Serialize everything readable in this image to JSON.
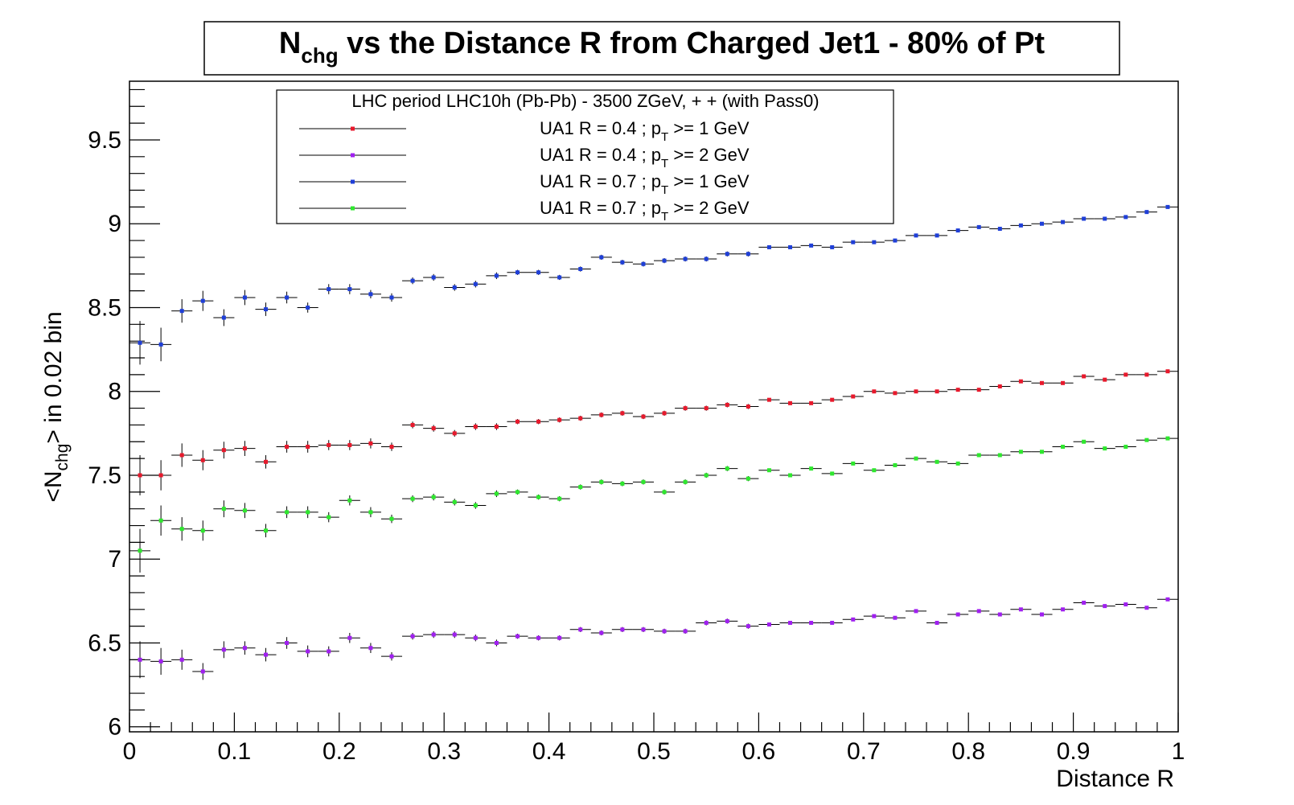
{
  "chart_data": {
    "type": "scatter",
    "title": {
      "main": "N",
      "sub": "chg",
      "rest": " vs the Distance R from Charged Jet1 - 80% of Pt"
    },
    "xlabel": "Distance R",
    "ylabel": {
      "pre": "<N",
      "sub": "chg",
      "post": "> in 0.02 bin"
    },
    "xlim": [
      0,
      1
    ],
    "ylim": [
      5.97,
      9.85
    ],
    "x_ticks": [
      {
        "value": 0,
        "label": "0"
      },
      {
        "value": 0.1,
        "label": "0.1"
      },
      {
        "value": 0.2,
        "label": "0.2"
      },
      {
        "value": 0.3,
        "label": "0.3"
      },
      {
        "value": 0.4,
        "label": "0.4"
      },
      {
        "value": 0.5,
        "label": "0.5"
      },
      {
        "value": 0.6,
        "label": "0.6"
      },
      {
        "value": 0.7,
        "label": "0.7"
      },
      {
        "value": 0.8,
        "label": "0.8"
      },
      {
        "value": 0.9,
        "label": "0.9"
      },
      {
        "value": 1,
        "label": "1"
      }
    ],
    "y_ticks": [
      {
        "value": 6,
        "label": "6"
      },
      {
        "value": 6.5,
        "label": "6.5"
      },
      {
        "value": 7,
        "label": "7"
      },
      {
        "value": 7.5,
        "label": "7.5"
      },
      {
        "value": 8,
        "label": "8"
      },
      {
        "value": 8.5,
        "label": "8.5"
      },
      {
        "value": 9,
        "label": "9"
      },
      {
        "value": 9.5,
        "label": "9.5"
      }
    ],
    "grid": false,
    "legend": {
      "placement": "top-center",
      "header": "LHC period LHC10h (Pb-Pb) - 3500 ZGeV, + + (with Pass0)"
    },
    "bin_width": 0.02,
    "x": [
      0.01,
      0.03,
      0.05,
      0.07,
      0.09,
      0.11,
      0.13,
      0.15,
      0.17,
      0.19,
      0.21,
      0.23,
      0.25,
      0.27,
      0.29,
      0.31,
      0.33,
      0.35,
      0.37,
      0.39,
      0.41,
      0.43,
      0.45,
      0.47,
      0.49,
      0.51,
      0.53,
      0.55,
      0.57,
      0.59,
      0.61,
      0.63,
      0.65,
      0.67,
      0.69,
      0.71,
      0.73,
      0.75,
      0.77,
      0.79,
      0.81,
      0.83,
      0.85,
      0.87,
      0.89,
      0.91,
      0.93,
      0.95,
      0.97,
      0.99
    ],
    "series": [
      {
        "name": "UA1 R = 0.4 ; p_T >= 1 GeV",
        "legend_pre": "UA1 R = 0.4 ; p",
        "legend_sub": "T",
        "legend_post": " >= 1 GeV",
        "color": "#e8192c",
        "values": [
          7.5,
          7.5,
          7.62,
          7.59,
          7.65,
          7.66,
          7.58,
          7.67,
          7.67,
          7.68,
          7.68,
          7.69,
          7.67,
          7.8,
          7.78,
          7.75,
          7.79,
          7.79,
          7.82,
          7.82,
          7.83,
          7.84,
          7.86,
          7.87,
          7.85,
          7.87,
          7.9,
          7.9,
          7.92,
          7.91,
          7.95,
          7.93,
          7.93,
          7.95,
          7.97,
          8.0,
          7.99,
          8.0,
          8.0,
          8.01,
          8.01,
          8.03,
          8.06,
          8.05,
          8.05,
          8.09,
          8.07,
          8.1,
          8.1,
          8.12
        ],
        "errors": [
          0.12,
          0.09,
          0.07,
          0.06,
          0.05,
          0.045,
          0.04,
          0.035,
          0.035,
          0.03,
          0.03,
          0.03,
          0.025,
          0.02,
          0.02,
          0.02,
          0.02,
          0.02,
          0.015,
          0.015,
          0.015,
          0.015,
          0.015,
          0.015,
          0.015,
          0.015,
          0.015,
          0.015,
          0.015,
          0.015,
          0.01,
          0.01,
          0.01,
          0.01,
          0.01,
          0.01,
          0.01,
          0.01,
          0.01,
          0.01,
          0.01,
          0.01,
          0.01,
          0.01,
          0.01,
          0.01,
          0.01,
          0.01,
          0.01,
          0.01
        ]
      },
      {
        "name": "UA1 R = 0.4 ; p_T >= 2 GeV",
        "legend_pre": "UA1 R = 0.4 ; p",
        "legend_sub": "T",
        "legend_post": " >= 2 GeV",
        "color": "#a020f0",
        "values": [
          6.4,
          6.39,
          6.4,
          6.33,
          6.46,
          6.47,
          6.43,
          6.5,
          6.45,
          6.45,
          6.53,
          6.47,
          6.42,
          6.54,
          6.55,
          6.55,
          6.53,
          6.5,
          6.54,
          6.53,
          6.53,
          6.58,
          6.56,
          6.58,
          6.58,
          6.57,
          6.57,
          6.62,
          6.63,
          6.6,
          6.61,
          6.62,
          6.62,
          6.62,
          6.64,
          6.66,
          6.65,
          6.69,
          6.62,
          6.67,
          6.69,
          6.67,
          6.7,
          6.67,
          6.7,
          6.74,
          6.72,
          6.73,
          6.71,
          6.76
        ],
        "errors": [
          0.11,
          0.08,
          0.06,
          0.05,
          0.05,
          0.04,
          0.04,
          0.035,
          0.035,
          0.03,
          0.03,
          0.03,
          0.025,
          0.02,
          0.02,
          0.02,
          0.02,
          0.02,
          0.015,
          0.015,
          0.015,
          0.015,
          0.015,
          0.015,
          0.015,
          0.015,
          0.015,
          0.015,
          0.015,
          0.015,
          0.01,
          0.01,
          0.01,
          0.01,
          0.01,
          0.01,
          0.01,
          0.01,
          0.01,
          0.01,
          0.01,
          0.01,
          0.01,
          0.01,
          0.01,
          0.01,
          0.01,
          0.01,
          0.01,
          0.01
        ]
      },
      {
        "name": "UA1 R = 0.7 ; p_T >= 1 GeV",
        "legend_pre": "UA1 R = 0.7 ; p",
        "legend_sub": "T",
        "legend_post": " >= 1 GeV",
        "color": "#1f3fd8",
        "values": [
          8.29,
          8.28,
          8.48,
          8.54,
          8.44,
          8.56,
          8.49,
          8.56,
          8.5,
          8.61,
          8.61,
          8.58,
          8.56,
          8.66,
          8.68,
          8.62,
          8.64,
          8.69,
          8.71,
          8.71,
          8.68,
          8.73,
          8.8,
          8.77,
          8.76,
          8.78,
          8.79,
          8.79,
          8.82,
          8.82,
          8.86,
          8.86,
          8.87,
          8.86,
          8.89,
          8.89,
          8.9,
          8.93,
          8.93,
          8.96,
          8.98,
          8.97,
          8.99,
          9.0,
          9.01,
          9.03,
          9.03,
          9.04,
          9.07,
          9.1
        ],
        "errors": [
          0.13,
          0.1,
          0.07,
          0.06,
          0.05,
          0.045,
          0.04,
          0.035,
          0.03,
          0.03,
          0.03,
          0.025,
          0.025,
          0.02,
          0.02,
          0.02,
          0.02,
          0.02,
          0.015,
          0.015,
          0.015,
          0.015,
          0.015,
          0.015,
          0.015,
          0.015,
          0.015,
          0.015,
          0.015,
          0.015,
          0.01,
          0.01,
          0.01,
          0.01,
          0.01,
          0.01,
          0.01,
          0.01,
          0.01,
          0.01,
          0.01,
          0.01,
          0.01,
          0.01,
          0.01,
          0.01,
          0.01,
          0.01,
          0.01,
          0.01
        ]
      },
      {
        "name": "UA1 R = 0.7 ; p_T >= 2 GeV",
        "legend_pre": "UA1 R = 0.7 ; p",
        "legend_sub": "T",
        "legend_post": " >= 2 GeV",
        "color": "#2ee82e",
        "values": [
          7.05,
          7.23,
          7.18,
          7.17,
          7.3,
          7.29,
          7.17,
          7.28,
          7.28,
          7.25,
          7.35,
          7.28,
          7.24,
          7.36,
          7.37,
          7.34,
          7.32,
          7.39,
          7.4,
          7.37,
          7.36,
          7.43,
          7.46,
          7.45,
          7.46,
          7.4,
          7.46,
          7.5,
          7.54,
          7.48,
          7.53,
          7.5,
          7.54,
          7.51,
          7.57,
          7.53,
          7.56,
          7.6,
          7.58,
          7.57,
          7.62,
          7.62,
          7.64,
          7.64,
          7.67,
          7.7,
          7.66,
          7.67,
          7.71,
          7.72
        ],
        "errors": [
          0.13,
          0.09,
          0.07,
          0.06,
          0.05,
          0.045,
          0.04,
          0.035,
          0.035,
          0.03,
          0.03,
          0.03,
          0.025,
          0.02,
          0.02,
          0.02,
          0.02,
          0.02,
          0.015,
          0.015,
          0.015,
          0.015,
          0.015,
          0.015,
          0.015,
          0.015,
          0.015,
          0.015,
          0.015,
          0.015,
          0.01,
          0.01,
          0.01,
          0.01,
          0.01,
          0.01,
          0.01,
          0.01,
          0.01,
          0.01,
          0.01,
          0.01,
          0.01,
          0.01,
          0.01,
          0.01,
          0.01,
          0.01,
          0.01,
          0.01
        ]
      }
    ]
  }
}
